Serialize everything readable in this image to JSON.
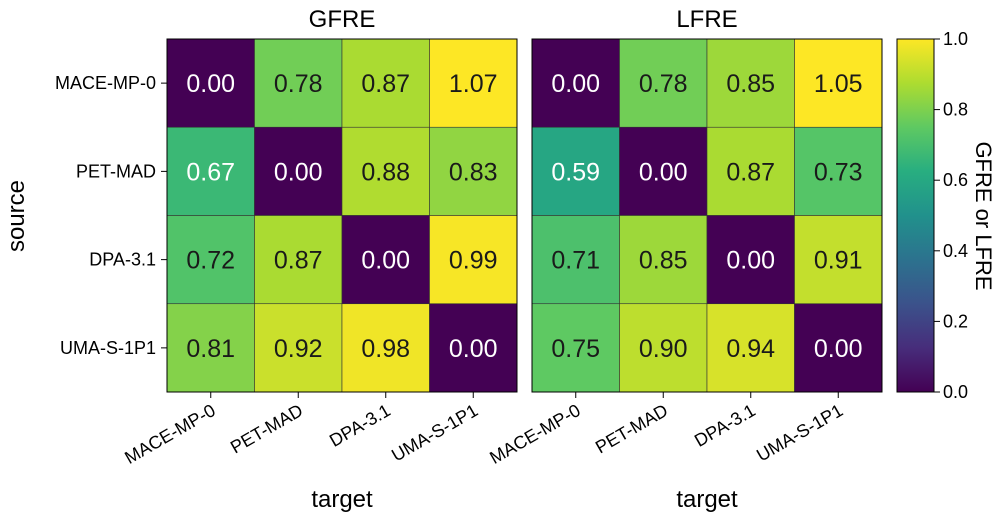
{
  "chart_data": {
    "type": "heatmap",
    "shared_y_label": "source",
    "shared_x_label": "target",
    "colorbar": {
      "label": "GFRE or LFRE",
      "range": [
        0,
        1
      ],
      "ticks": [
        "0.0",
        "0.2",
        "0.4",
        "0.6",
        "0.8",
        "1.0"
      ],
      "colormap": "viridis"
    },
    "panels": [
      {
        "title": "GFRE",
        "xlabel": "target",
        "rows": [
          "MACE-MP-0",
          "PET-MAD",
          "DPA-3.1",
          "UMA-S-1P1"
        ],
        "cols": [
          "MACE-MP-0",
          "PET-MAD",
          "DPA-3.1",
          "UMA-S-1P1"
        ],
        "values": [
          [
            0.0,
            0.78,
            0.87,
            1.07
          ],
          [
            0.67,
            0.0,
            0.88,
            0.83
          ],
          [
            0.72,
            0.87,
            0.0,
            0.99
          ],
          [
            0.81,
            0.92,
            0.98,
            0.0
          ]
        ],
        "labels": [
          [
            "0.00",
            "0.78",
            "0.87",
            "1.07"
          ],
          [
            "0.67",
            "0.00",
            "0.88",
            "0.83"
          ],
          [
            "0.72",
            "0.87",
            "0.00",
            "0.99"
          ],
          [
            "0.81",
            "0.92",
            "0.98",
            "0.00"
          ]
        ]
      },
      {
        "title": "LFRE",
        "xlabel": "target",
        "rows": [
          "MACE-MP-0",
          "PET-MAD",
          "DPA-3.1",
          "UMA-S-1P1"
        ],
        "cols": [
          "MACE-MP-0",
          "PET-MAD",
          "DPA-3.1",
          "UMA-S-1P1"
        ],
        "values": [
          [
            0.0,
            0.78,
            0.85,
            1.05
          ],
          [
            0.59,
            0.0,
            0.87,
            0.73
          ],
          [
            0.71,
            0.85,
            0.0,
            0.91
          ],
          [
            0.75,
            0.9,
            0.94,
            0.0
          ]
        ],
        "labels": [
          [
            "0.00",
            "0.78",
            "0.85",
            "1.05"
          ],
          [
            "0.59",
            "0.00",
            "0.87",
            "0.73"
          ],
          [
            "0.71",
            "0.85",
            "0.00",
            "0.91"
          ],
          [
            "0.75",
            "0.90",
            "0.94",
            "0.00"
          ]
        ]
      }
    ]
  }
}
